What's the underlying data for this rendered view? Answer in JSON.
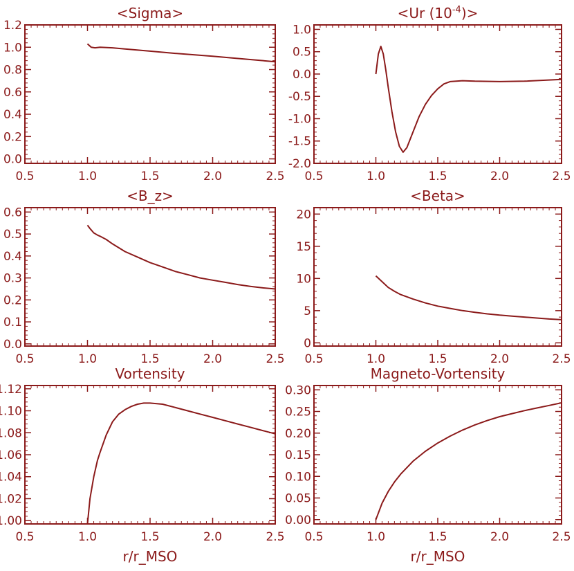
{
  "figure": {
    "ink_color": "#8b1a1a",
    "background": "#ffffff"
  },
  "chart_data": [
    {
      "type": "line",
      "title": "<Sigma>",
      "xlabel": "",
      "ylabel": "",
      "xlim": [
        0.5,
        2.5
      ],
      "ylim": [
        -0.04,
        1.2
      ],
      "xticks": [
        "0.5",
        "1.0",
        "1.5",
        "2.0",
        "2.5"
      ],
      "xtick_values": [
        0.5,
        1.0,
        1.5,
        2.0,
        2.5
      ],
      "yticks": [
        "0.0",
        "0.2",
        "0.4",
        "0.6",
        "0.8",
        "1.0",
        "1.2"
      ],
      "ytick_values": [
        0.0,
        0.2,
        0.4,
        0.6,
        0.8,
        1.0,
        1.2
      ],
      "grid": false,
      "series": [
        {
          "x": [
            1.0,
            1.03,
            1.06,
            1.1,
            1.2,
            1.3,
            1.5,
            1.7,
            2.0,
            2.25,
            2.5
          ],
          "y": [
            1.03,
            1.0,
            0.995,
            1.0,
            0.995,
            0.985,
            0.965,
            0.945,
            0.92,
            0.895,
            0.87
          ]
        }
      ]
    },
    {
      "type": "line",
      "title": "<Ur (10",
      "title_sup": "-4",
      "title_end": ")>",
      "xlabel": "",
      "ylabel": "",
      "xlim": [
        0.5,
        2.5
      ],
      "ylim": [
        -2.0,
        1.1
      ],
      "xticks": [
        "0.5",
        "1.0",
        "1.5",
        "2.0",
        "2.5"
      ],
      "xtick_values": [
        0.5,
        1.0,
        1.5,
        2.0,
        2.5
      ],
      "yticks": [
        "-2.0",
        "-1.5",
        "-1.0",
        "-0.5",
        "0.0",
        "0.5",
        "1.0"
      ],
      "ytick_values": [
        -2.0,
        -1.5,
        -1.0,
        -0.5,
        0.0,
        0.5,
        1.0
      ],
      "grid": false,
      "series": [
        {
          "x": [
            1.0,
            1.02,
            1.04,
            1.06,
            1.08,
            1.1,
            1.13,
            1.16,
            1.19,
            1.22,
            1.25,
            1.3,
            1.35,
            1.4,
            1.45,
            1.5,
            1.55,
            1.6,
            1.7,
            1.8,
            2.0,
            2.2,
            2.5
          ],
          "y": [
            0.0,
            0.45,
            0.62,
            0.45,
            0.1,
            -0.3,
            -0.85,
            -1.3,
            -1.62,
            -1.75,
            -1.65,
            -1.3,
            -0.95,
            -0.68,
            -0.48,
            -0.33,
            -0.22,
            -0.17,
            -0.15,
            -0.16,
            -0.17,
            -0.16,
            -0.12
          ]
        }
      ]
    },
    {
      "type": "line",
      "title": "<B_z>",
      "xlabel": "",
      "ylabel": "",
      "xlim": [
        0.5,
        2.5
      ],
      "ylim": [
        -0.01,
        0.62
      ],
      "xticks": [
        "0.5",
        "1.0",
        "1.5",
        "2.0",
        "2.5"
      ],
      "xtick_values": [
        0.5,
        1.0,
        1.5,
        2.0,
        2.5
      ],
      "yticks": [
        "0.0",
        "0.1",
        "0.2",
        "0.3",
        "0.4",
        "0.5",
        "0.6"
      ],
      "ytick_values": [
        0.0,
        0.1,
        0.2,
        0.3,
        0.4,
        0.5,
        0.6
      ],
      "grid": false,
      "series": [
        {
          "x": [
            1.0,
            1.02,
            1.05,
            1.08,
            1.1,
            1.15,
            1.2,
            1.3,
            1.4,
            1.5,
            1.6,
            1.7,
            1.8,
            1.9,
            2.0,
            2.1,
            2.2,
            2.3,
            2.4,
            2.5
          ],
          "y": [
            0.54,
            0.525,
            0.505,
            0.495,
            0.49,
            0.475,
            0.455,
            0.42,
            0.395,
            0.37,
            0.35,
            0.33,
            0.315,
            0.3,
            0.29,
            0.28,
            0.27,
            0.262,
            0.255,
            0.25
          ]
        }
      ]
    },
    {
      "type": "line",
      "title": "<Beta>",
      "xlabel": "",
      "ylabel": "",
      "xlim": [
        0.5,
        2.5
      ],
      "ylim": [
        -0.5,
        21
      ],
      "xticks": [
        "0.5",
        "1.0",
        "1.5",
        "2.0",
        "2.5"
      ],
      "xtick_values": [
        0.5,
        1.0,
        1.5,
        2.0,
        2.5
      ],
      "yticks": [
        "0",
        "5",
        "10",
        "15",
        "20"
      ],
      "ytick_values": [
        0,
        5,
        10,
        15,
        20
      ],
      "grid": false,
      "series": [
        {
          "x": [
            1.0,
            1.05,
            1.1,
            1.15,
            1.2,
            1.3,
            1.4,
            1.5,
            1.6,
            1.7,
            1.8,
            1.9,
            2.0,
            2.1,
            2.2,
            2.3,
            2.4,
            2.5
          ],
          "y": [
            10.4,
            9.5,
            8.6,
            8.0,
            7.5,
            6.8,
            6.2,
            5.7,
            5.35,
            5.0,
            4.75,
            4.5,
            4.3,
            4.15,
            4.0,
            3.85,
            3.7,
            3.6
          ]
        }
      ]
    },
    {
      "type": "line",
      "title": "Vortensity",
      "xlabel": "r/r_MSO",
      "ylabel": "",
      "xlim": [
        0.5,
        2.5
      ],
      "ylim": [
        0.997,
        1.123
      ],
      "xticks": [
        "0.5",
        "1.0",
        "1.5",
        "2.0",
        "2.5"
      ],
      "xtick_values": [
        0.5,
        1.0,
        1.5,
        2.0,
        2.5
      ],
      "yticks": [
        "1.00",
        "1.02",
        "1.04",
        "1.06",
        "1.08",
        "1.10",
        "1.12"
      ],
      "ytick_values": [
        1.0,
        1.02,
        1.04,
        1.06,
        1.08,
        1.1,
        1.12
      ],
      "grid": false,
      "series": [
        {
          "x": [
            1.0,
            1.02,
            1.05,
            1.08,
            1.1,
            1.15,
            1.2,
            1.25,
            1.3,
            1.35,
            1.4,
            1.45,
            1.5,
            1.6,
            1.7,
            1.8,
            1.9,
            2.0,
            2.1,
            2.2,
            2.3,
            2.4,
            2.5
          ],
          "y": [
            0.997,
            1.02,
            1.04,
            1.055,
            1.062,
            1.078,
            1.09,
            1.097,
            1.101,
            1.104,
            1.106,
            1.107,
            1.107,
            1.106,
            1.103,
            1.1,
            1.097,
            1.094,
            1.091,
            1.088,
            1.085,
            1.082,
            1.079
          ]
        }
      ]
    },
    {
      "type": "line",
      "title": "Magneto-Vortensity",
      "xlabel": "r/r_MSO",
      "ylabel": "",
      "xlim": [
        0.5,
        2.5
      ],
      "ylim": [
        -0.01,
        0.31
      ],
      "xticks": [
        "0.5",
        "1.0",
        "1.5",
        "2.0",
        "2.5"
      ],
      "xtick_values": [
        0.5,
        1.0,
        1.5,
        2.0,
        2.5
      ],
      "yticks": [
        "0.00",
        "0.05",
        "0.10",
        "0.15",
        "0.20",
        "0.25",
        "0.30"
      ],
      "ytick_values": [
        0.0,
        0.05,
        0.1,
        0.15,
        0.2,
        0.25,
        0.3
      ],
      "grid": false,
      "series": [
        {
          "x": [
            1.0,
            1.05,
            1.1,
            1.15,
            1.2,
            1.3,
            1.4,
            1.5,
            1.6,
            1.7,
            1.8,
            1.9,
            2.0,
            2.1,
            2.2,
            2.3,
            2.4,
            2.5
          ],
          "y": [
            0.0,
            0.038,
            0.065,
            0.087,
            0.105,
            0.135,
            0.158,
            0.177,
            0.193,
            0.207,
            0.219,
            0.229,
            0.238,
            0.245,
            0.252,
            0.258,
            0.264,
            0.27
          ]
        }
      ]
    }
  ]
}
